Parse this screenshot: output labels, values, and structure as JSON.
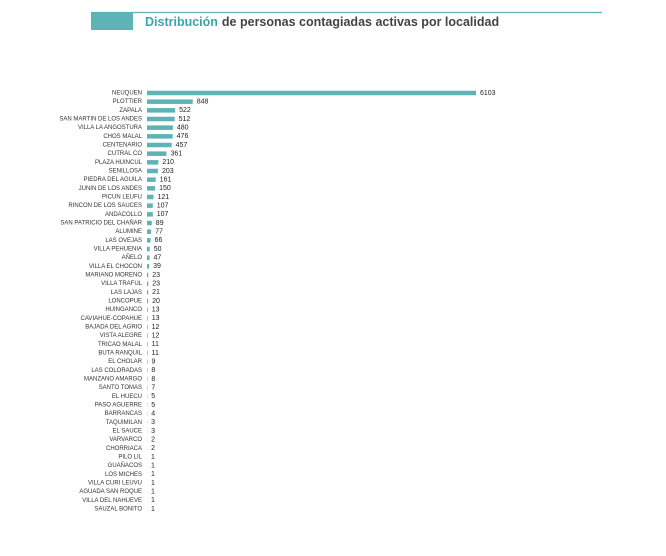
{
  "chart_data": {
    "type": "hbar",
    "title_highlight": "Distribución",
    "title": "de personas contagiadas activas por localidad",
    "color": "#5db3b5",
    "categories": [
      "NEUQUEN",
      "PLOTTIER",
      "ZAPALA",
      "SAN MARTIN DE LOS ANDES",
      "VILLA LA ANGOSTURA",
      "CHOS MALAL",
      "CENTENARIO",
      "CUTRAL CO",
      "PLAZA HUINCUL",
      "SENILLOSA",
      "PIEDRA DEL AGUILA",
      "JUNIN DE LOS ANDES",
      "PICUN LEUFU",
      "RINCON DE LOS SAUCES",
      "ANDACOLLO",
      "SAN PATRICIO DEL CHAÑAR",
      "ALUMINE",
      "LAS OVEJAS",
      "VILLA PEHUENIA",
      "AÑELO",
      "VILLA EL CHOCON",
      "MARIANO MORENO",
      "VILLA TRAFUL",
      "LAS LAJAS",
      "LONCOPUE",
      "HUINGANCO",
      "CAVIAHUE-COPAHUE",
      "BAJADA DEL AGRIO",
      "VISTA ALEGRE",
      "TRICAO MALAL",
      "BUTA RANQUIL",
      "EL CHOLAR",
      "LAS COLORADAS",
      "MANZANO AMARGO",
      "SANTO TOMAS",
      "EL HUECU",
      "PASO AGUERRE",
      "BARRANCAS",
      "TAQUIMILAN",
      "EL SAUCE",
      "VARVARCO",
      "CHORRIACA",
      "PILO LIL",
      "GUAÑACOS",
      "LOS MICHES",
      "VILLA CURI LEUVU",
      "AGUADA SAN ROQUE",
      "VILLA DEL NAHUEVE",
      "SAUZAL BONITO"
    ],
    "values": [
      6103,
      848,
      522,
      512,
      480,
      476,
      457,
      361,
      210,
      203,
      161,
      150,
      121,
      107,
      107,
      89,
      77,
      66,
      50,
      47,
      39,
      23,
      23,
      21,
      20,
      13,
      13,
      12,
      12,
      11,
      11,
      9,
      8,
      8,
      7,
      5,
      5,
      4,
      3,
      3,
      2,
      2,
      1,
      1,
      1,
      1,
      1,
      1,
      1
    ]
  }
}
